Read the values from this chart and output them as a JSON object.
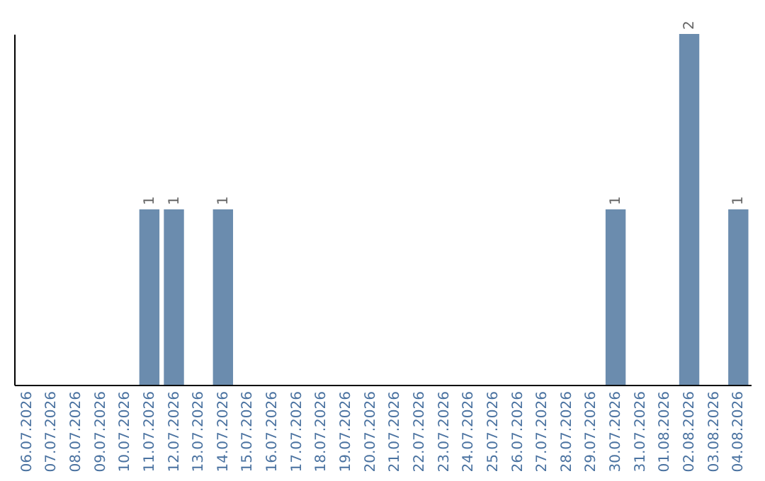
{
  "chart_data": {
    "type": "bar",
    "categories": [
      "06.07.2026",
      "07.07.2026",
      "08.07.2026",
      "09.07.2026",
      "10.07.2026",
      "11.07.2026",
      "12.07.2026",
      "13.07.2026",
      "14.07.2026",
      "15.07.2026",
      "16.07.2026",
      "17.07.2026",
      "18.07.2026",
      "19.07.2026",
      "20.07.2026",
      "21.07.2026",
      "22.07.2026",
      "23.07.2026",
      "24.07.2026",
      "25.07.2026",
      "26.07.2026",
      "27.07.2026",
      "28.07.2026",
      "29.07.2026",
      "30.07.2026",
      "31.07.2026",
      "01.08.2026",
      "02.08.2026",
      "03.08.2026",
      "04.08.2026"
    ],
    "values": [
      0,
      0,
      0,
      0,
      0,
      1,
      1,
      0,
      1,
      0,
      0,
      0,
      0,
      0,
      0,
      0,
      0,
      0,
      0,
      0,
      0,
      0,
      0,
      0,
      1,
      0,
      0,
      2,
      0,
      1
    ],
    "value_labels": [
      null,
      null,
      null,
      null,
      null,
      "1",
      "1",
      null,
      "1",
      null,
      null,
      null,
      null,
      null,
      null,
      null,
      null,
      null,
      null,
      null,
      null,
      null,
      null,
      null,
      "1",
      null,
      null,
      "2",
      null,
      "1"
    ],
    "color": "#6b8cae",
    "grid": false,
    "tick_labels": "x"
  }
}
